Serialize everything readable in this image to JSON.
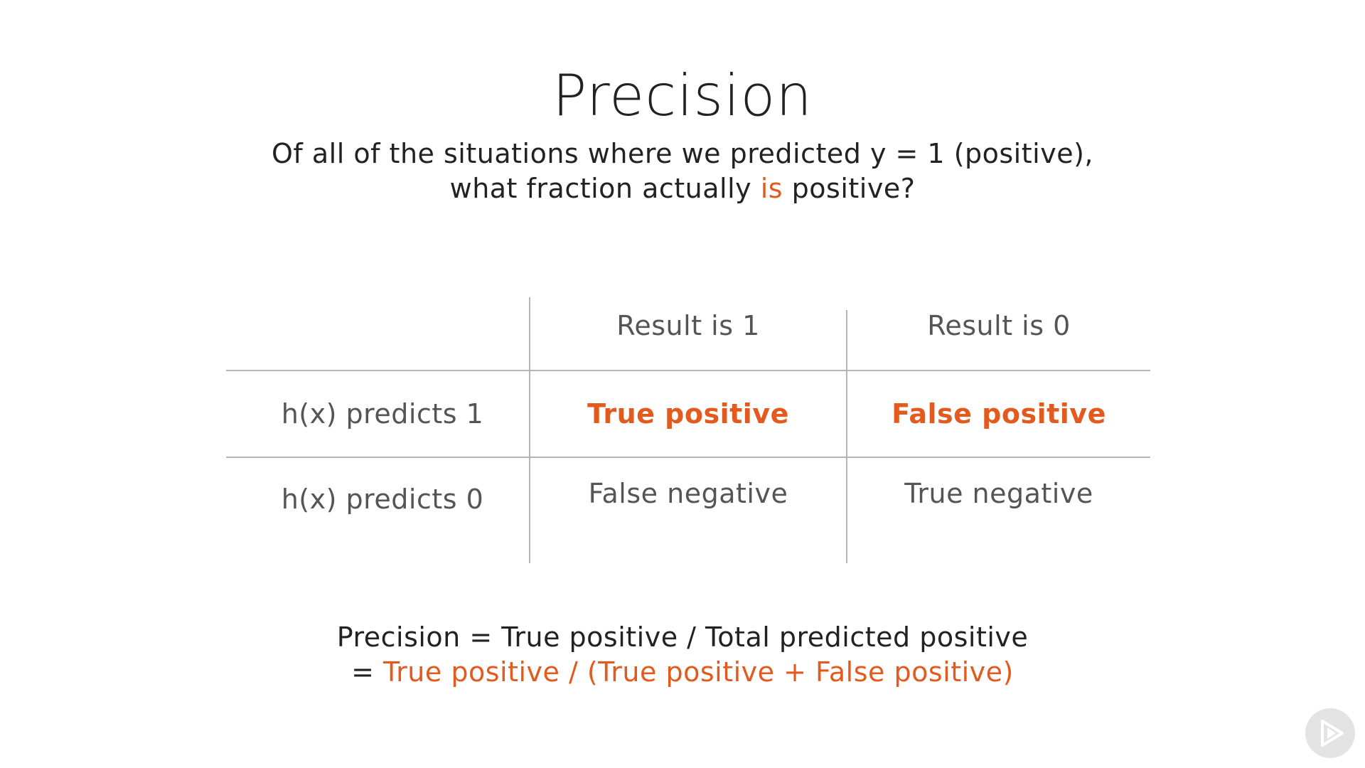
{
  "title": "Precision",
  "subtitle": {
    "line1": "Of all of the situations where we predicted y = 1 (positive),",
    "line2_before": "what fraction actually ",
    "line2_accent": "is",
    "line2_after": " positive?"
  },
  "matrix": {
    "col_headers": [
      "Result is 1",
      "Result is 0"
    ],
    "rows": [
      {
        "label": "h(x) predicts 1",
        "cells": [
          "True positive",
          "False positive"
        ]
      },
      {
        "label": "h(x) predicts 0",
        "cells": [
          "False negative",
          "True negative"
        ]
      }
    ]
  },
  "formula": {
    "line1": "Precision = True positive / Total predicted positive",
    "line2_prefix": "= ",
    "line2_accent": "True positive / (True positive + False positive)"
  },
  "colors": {
    "accent": "#e35a1f",
    "text": "#222222",
    "muted": "#555555",
    "grid": "#b5b5b5"
  },
  "icons": {
    "badge": "play-logo-icon"
  }
}
